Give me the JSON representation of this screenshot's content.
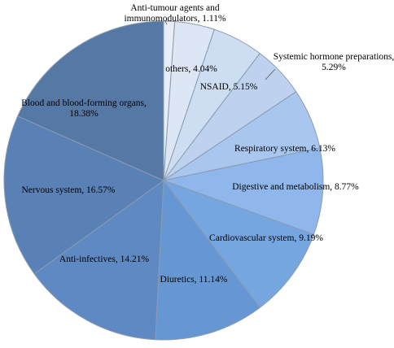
{
  "chart_data": {
    "type": "pie",
    "title": "",
    "slices": [
      {
        "label": "Anti-tumour agents and immunomodulators",
        "value": 1.11,
        "value_label": "1.11%",
        "color": "#e8eef7",
        "label_lines": [
          "Anti-tumour agents and",
          "immunomodulators, 1.11%"
        ]
      },
      {
        "label": "others",
        "value": 4.04,
        "value_label": "4.04%",
        "color": "#dde6f4",
        "label_lines": [
          "others, 4.04%"
        ]
      },
      {
        "label": "NSAID",
        "value": 5.15,
        "value_label": "5.15%",
        "color": "#cdddf2",
        "label_lines": [
          "NSAID, 5.15%"
        ]
      },
      {
        "label": "Systemic hormone preparations",
        "value": 5.29,
        "value_label": "5.29%",
        "color": "#bed2ef",
        "label_lines": [
          "Systemic hormone preparations,",
          "5.29%"
        ]
      },
      {
        "label": "Respiratory system",
        "value": 6.13,
        "value_label": "6.13%",
        "color": "#a9c6ee",
        "label_lines": [
          "Respiratory system, 6.13%"
        ]
      },
      {
        "label": "Digestive and metabolism",
        "value": 8.77,
        "value_label": "8.77%",
        "color": "#8fb7ec",
        "label_lines": [
          "Digestive and metabolism, 8.77%"
        ]
      },
      {
        "label": "Cardiovascular system",
        "value": 9.19,
        "value_label": "9.19%",
        "color": "#76a6df",
        "label_lines": [
          "Cardiovascular system, 9.19%"
        ]
      },
      {
        "label": "Diuretics",
        "value": 11.14,
        "value_label": "11.14%",
        "color": "#6797d3",
        "label_lines": [
          "Diuretics, 11.14%"
        ]
      },
      {
        "label": "Anti-infectives",
        "value": 14.21,
        "value_label": "14.21%",
        "color": "#5e89c2",
        "label_lines": [
          "Anti-infectives, 14.21%"
        ]
      },
      {
        "label": "Nervous system",
        "value": 16.57,
        "value_label": "16.57%",
        "color": "#5a81b5",
        "label_lines": [
          "Nervous system, 16.57%"
        ]
      },
      {
        "label": "Blood and blood-forming organs",
        "value": 18.38,
        "value_label": "18.38%",
        "color": "#5678a5",
        "label_lines": [
          "Blood and blood-forming organs,",
          "18.38%"
        ]
      }
    ],
    "start_angle_deg": 0,
    "direction": "clockwise",
    "legend": "none"
  }
}
